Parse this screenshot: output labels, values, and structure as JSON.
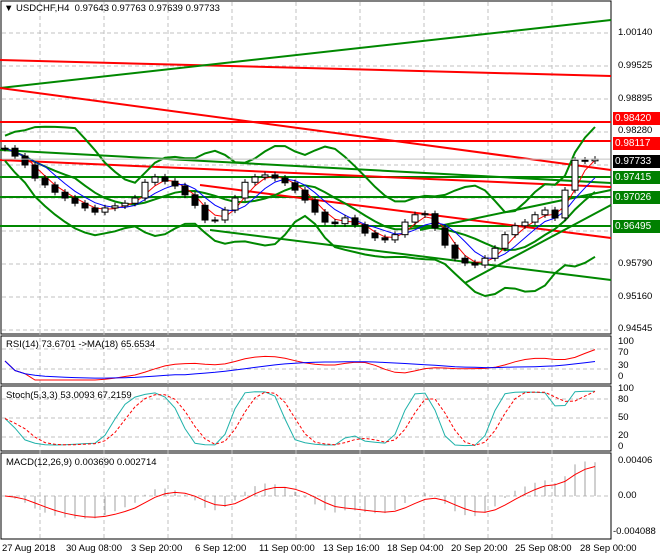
{
  "header": {
    "symbol": "USDCHF,H4",
    "open": "0.97643",
    "high": "0.97763",
    "low": "0.97639",
    "close": "0.97733"
  },
  "price_axis": [
    "1.00140",
    "0.99525",
    "0.98895",
    "0.95790",
    "0.95160",
    "0.94545"
  ],
  "levels": [
    {
      "value": "0.98420",
      "color": "#ff0000"
    },
    {
      "value": "0.98117",
      "color": "#ff0000"
    },
    {
      "value": "0.97733",
      "color": "#000000"
    },
    {
      "value": "0.97415",
      "color": "#008000"
    },
    {
      "value": "0.97026",
      "color": "#008000"
    },
    {
      "value": "0.96495",
      "color": "#008000"
    }
  ],
  "hidden_level": "0.98280",
  "rsi": {
    "label": "RSI(14) 73.6701  ->MA(18) 65.6534",
    "axis": [
      "100",
      "70",
      "30",
      "0"
    ]
  },
  "stoch": {
    "label": "Stoch(5,3,3) 53.0093 67.2159",
    "axis": [
      "100",
      "80",
      "50",
      "20",
      "0"
    ]
  },
  "macd": {
    "label": "MACD(12,26,9) 0.003690 0.002714",
    "axis": [
      "0.00406",
      "0.00",
      "-0.004088"
    ]
  },
  "time_axis": [
    "27 Aug 2018",
    "30 Aug 08:00",
    "3 Sep 20:00",
    "6 Sep 12:00",
    "11 Sep 00:00",
    "13 Sep 16:00",
    "18 Sep 04:00",
    "20 Sep 20:00",
    "25 Sep 08:00",
    "28 Sep 00:00"
  ],
  "chart_data": {
    "type": "candlestick",
    "symbol": "USDCHF",
    "timeframe": "H4",
    "approx_closes": [
      0.9794,
      0.9779,
      0.9762,
      0.9737,
      0.9724,
      0.971,
      0.9699,
      0.9689,
      0.968,
      0.9672,
      0.968,
      0.9684,
      0.9689,
      0.9699,
      0.9729,
      0.9739,
      0.9731,
      0.9722,
      0.9705,
      0.9685,
      0.9657,
      0.9657,
      0.9676,
      0.9699,
      0.9729,
      0.9739,
      0.9743,
      0.9737,
      0.9728,
      0.9714,
      0.9695,
      0.9672,
      0.9653,
      0.965,
      0.9661,
      0.9648,
      0.9632,
      0.9623,
      0.9619,
      0.9629,
      0.9653,
      0.9667,
      0.9669,
      0.9642,
      0.9609,
      0.9584,
      0.9575,
      0.9571,
      0.9584,
      0.9603,
      0.9629,
      0.9646,
      0.9653,
      0.9667,
      0.9676,
      0.9661,
      0.9714,
      0.9771,
      0.977,
      0.9773
    ],
    "ylim": [
      0.9435,
      1.0045
    ]
  }
}
